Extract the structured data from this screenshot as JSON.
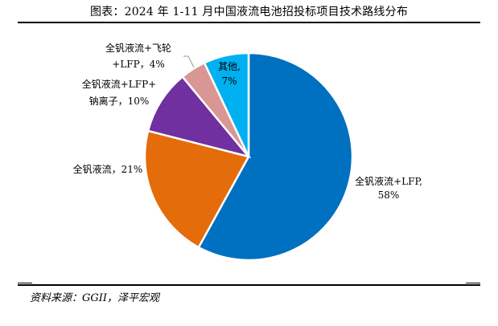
{
  "title": "图表：2024 年 1-11 月中国液流电池招投标项目技术路线分布",
  "source": "资料来源：GGII，泽平宏观",
  "chart_data": {
    "type": "pie",
    "title": "图表：2024 年 1-11 月中国液流电池招投标项目技术路线分布",
    "unit": "%",
    "slices": [
      {
        "name": "全钒液流+LFP",
        "value": 58,
        "color": "#0070C0",
        "label_lines": [
          "全钒液流+LFP,",
          "58%"
        ]
      },
      {
        "name": "全钒液流",
        "value": 21,
        "color": "#E46C0A",
        "label_lines": [
          "全钒液流，21%"
        ]
      },
      {
        "name": "全钒液流+LFP+钠离子",
        "value": 10,
        "color": "#7030A0",
        "label_lines": [
          "全钒液流+LFP+",
          "钠离子，10%"
        ]
      },
      {
        "name": "全钒液流+飞轮+LFP",
        "value": 4,
        "color": "#DA9694",
        "label_lines": [
          "全钒液流+飞轮",
          "+LFP，4%"
        ]
      },
      {
        "name": "其他",
        "value": 7,
        "color": "#00B0F0",
        "label_lines": [
          "其他,",
          "7%"
        ]
      }
    ]
  }
}
